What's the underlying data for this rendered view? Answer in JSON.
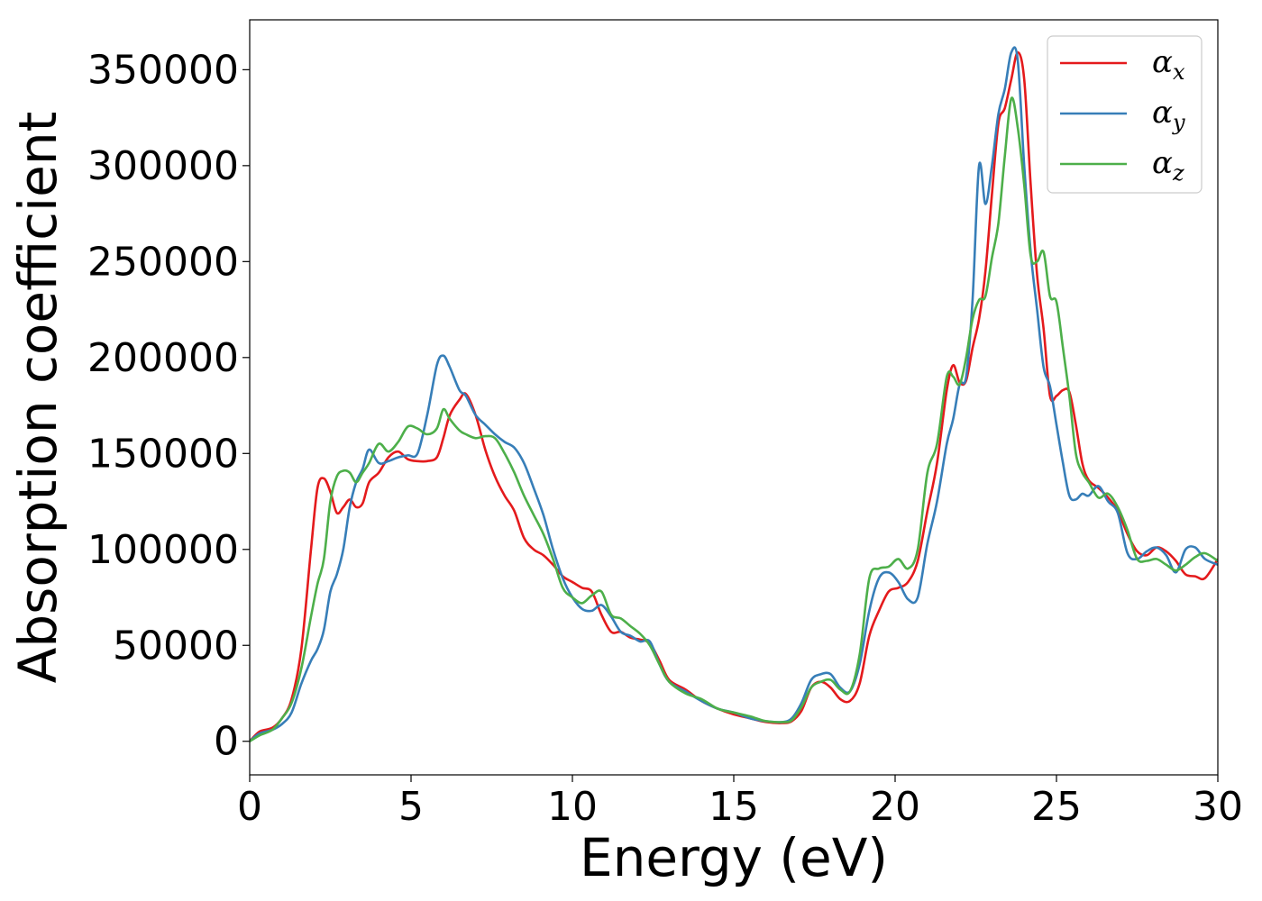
{
  "chart_data": {
    "type": "line",
    "title": "",
    "xlabel": "Energy (eV)",
    "ylabel": "Absorption coefficient",
    "xlim": [
      0,
      30
    ],
    "ylim": [
      -17500,
      376000
    ],
    "xticks": [
      0,
      5,
      10,
      15,
      20,
      25,
      30
    ],
    "yticks": [
      0,
      50000,
      100000,
      150000,
      200000,
      250000,
      300000,
      350000
    ],
    "grid": false,
    "legend_position": "top-right",
    "series": [
      {
        "name": "α",
        "subscript": "x",
        "color": "#e41a1c",
        "x": [
          0,
          0.3,
          0.7,
          1.0,
          1.3,
          1.6,
          1.9,
          2.1,
          2.3,
          2.5,
          2.7,
          2.9,
          3.1,
          3.3,
          3.5,
          3.7,
          4.0,
          4.3,
          4.6,
          4.9,
          5.2,
          5.5,
          5.8,
          6.0,
          6.2,
          6.5,
          6.7,
          7.0,
          7.3,
          7.6,
          7.9,
          8.2,
          8.5,
          8.8,
          9.1,
          9.4,
          9.7,
          10.0,
          10.3,
          10.6,
          10.9,
          11.2,
          11.5,
          11.8,
          12.1,
          12.4,
          12.7,
          13.0,
          13.5,
          14.0,
          14.5,
          15.0,
          15.5,
          16.0,
          16.5,
          16.8,
          17.1,
          17.4,
          17.7,
          18.0,
          18.3,
          18.6,
          18.9,
          19.2,
          19.5,
          19.8,
          20.1,
          20.4,
          20.7,
          21.0,
          21.3,
          21.6,
          21.8,
          22.0,
          22.2,
          22.4,
          22.6,
          22.8,
          23.0,
          23.2,
          23.4,
          23.6,
          23.8,
          24.0,
          24.2,
          24.4,
          24.6,
          24.8,
          25.0,
          25.2,
          25.4,
          25.6,
          25.8,
          26.0,
          26.3,
          26.6,
          26.9,
          27.2,
          27.5,
          27.8,
          28.1,
          28.4,
          28.7,
          29.0,
          29.3,
          29.6,
          30.0
        ],
        "y": [
          0,
          5000,
          7000,
          12000,
          22000,
          48000,
          100000,
          132000,
          137000,
          130000,
          119000,
          122000,
          126000,
          122000,
          124000,
          135000,
          140000,
          148000,
          151000,
          147000,
          146000,
          146000,
          148000,
          158000,
          170000,
          178000,
          181000,
          170000,
          152000,
          138000,
          128000,
          120000,
          106000,
          100000,
          97000,
          92000,
          86000,
          83000,
          80000,
          78000,
          66000,
          57000,
          57000,
          54000,
          53000,
          51000,
          42000,
          32000,
          27000,
          21000,
          17000,
          14000,
          12000,
          10000,
          9500,
          10500,
          16000,
          28000,
          31000,
          28000,
          22000,
          21000,
          30000,
          55000,
          68000,
          78000,
          80000,
          83000,
          94000,
          120000,
          145000,
          183000,
          196000,
          187000,
          188000,
          205000,
          220000,
          245000,
          285000,
          322000,
          330000,
          345000,
          359000,
          345000,
          290000,
          243000,
          215000,
          180000,
          180000,
          183000,
          182000,
          165000,
          145000,
          136000,
          132000,
          127000,
          120000,
          108000,
          99000,
          97000,
          101000,
          99000,
          94000,
          87000,
          86000,
          85000,
          95000
        ]
      },
      {
        "name": "α",
        "subscript": "y",
        "color": "#377eb8",
        "x": [
          0,
          0.3,
          0.7,
          1.0,
          1.3,
          1.6,
          1.9,
          2.1,
          2.3,
          2.5,
          2.7,
          2.9,
          3.1,
          3.3,
          3.5,
          3.7,
          4.0,
          4.3,
          4.6,
          4.9,
          5.2,
          5.5,
          5.8,
          6.0,
          6.2,
          6.5,
          6.7,
          7.0,
          7.3,
          7.6,
          7.9,
          8.2,
          8.5,
          8.8,
          9.1,
          9.4,
          9.7,
          10.0,
          10.3,
          10.6,
          10.9,
          11.2,
          11.5,
          11.8,
          12.1,
          12.4,
          12.7,
          13.0,
          13.5,
          14.0,
          14.5,
          15.0,
          15.5,
          16.0,
          16.5,
          16.8,
          17.1,
          17.4,
          17.7,
          18.0,
          18.3,
          18.6,
          18.9,
          19.2,
          19.5,
          19.8,
          20.1,
          20.4,
          20.7,
          21.0,
          21.3,
          21.6,
          21.8,
          22.0,
          22.2,
          22.4,
          22.6,
          22.8,
          23.0,
          23.2,
          23.4,
          23.6,
          23.8,
          24.0,
          24.2,
          24.4,
          24.6,
          24.8,
          25.0,
          25.2,
          25.4,
          25.6,
          25.8,
          26.0,
          26.3,
          26.6,
          26.9,
          27.2,
          27.5,
          27.8,
          28.1,
          28.4,
          28.7,
          29.0,
          29.3,
          29.6,
          30.0
        ],
        "y": [
          0,
          4000,
          6000,
          9000,
          15000,
          30000,
          42000,
          48000,
          58000,
          78000,
          87000,
          100000,
          122000,
          135000,
          142000,
          152000,
          145000,
          146000,
          148000,
          149000,
          150000,
          170000,
          196000,
          201000,
          195000,
          183000,
          180000,
          170000,
          165000,
          160000,
          156000,
          153000,
          145000,
          132000,
          118000,
          100000,
          85000,
          75000,
          69000,
          68000,
          71000,
          65000,
          57000,
          55000,
          52000,
          52000,
          40000,
          31000,
          26000,
          21000,
          17000,
          15000,
          12000,
          10500,
          10000,
          12000,
          20000,
          32000,
          35000,
          35000,
          28000,
          26000,
          40000,
          68000,
          85000,
          88000,
          83000,
          74000,
          75000,
          103000,
          125000,
          155000,
          168000,
          186000,
          190000,
          230000,
          300000,
          280000,
          300000,
          327000,
          340000,
          359000,
          355000,
          300000,
          255000,
          225000,
          195000,
          185000,
          165000,
          145000,
          128000,
          126000,
          129000,
          128000,
          133000,
          125000,
          119000,
          98000,
          95000,
          99000,
          101000,
          97000,
          88000,
          100000,
          101000,
          95000,
          92000
        ]
      },
      {
        "name": "α",
        "subscript": "z",
        "color": "#4daf4a",
        "x": [
          0,
          0.3,
          0.7,
          1.0,
          1.3,
          1.6,
          1.9,
          2.1,
          2.3,
          2.5,
          2.7,
          2.9,
          3.1,
          3.3,
          3.5,
          3.7,
          4.0,
          4.3,
          4.6,
          4.9,
          5.2,
          5.5,
          5.8,
          6.0,
          6.2,
          6.5,
          6.7,
          7.0,
          7.3,
          7.6,
          7.9,
          8.2,
          8.5,
          8.8,
          9.1,
          9.4,
          9.7,
          10.0,
          10.3,
          10.6,
          10.9,
          11.2,
          11.5,
          11.8,
          12.1,
          12.4,
          12.7,
          13.0,
          13.5,
          14.0,
          14.5,
          15.0,
          15.5,
          16.0,
          16.5,
          16.8,
          17.1,
          17.4,
          17.7,
          18.0,
          18.3,
          18.6,
          18.9,
          19.2,
          19.5,
          19.8,
          20.1,
          20.4,
          20.7,
          21.0,
          21.3,
          21.6,
          21.8,
          22.0,
          22.2,
          22.4,
          22.6,
          22.8,
          23.0,
          23.2,
          23.4,
          23.6,
          23.8,
          24.0,
          24.2,
          24.4,
          24.6,
          24.8,
          25.0,
          25.2,
          25.4,
          25.6,
          25.8,
          26.0,
          26.3,
          26.6,
          26.9,
          27.2,
          27.5,
          27.8,
          28.1,
          28.4,
          28.7,
          29.0,
          29.3,
          29.6,
          30.0
        ],
        "y": [
          0,
          3000,
          6000,
          12000,
          20000,
          38000,
          65000,
          82000,
          95000,
          125000,
          138000,
          141000,
          140000,
          135000,
          140000,
          145000,
          155000,
          151000,
          156000,
          164000,
          163000,
          160000,
          163000,
          173000,
          168000,
          162000,
          160000,
          158000,
          159000,
          158000,
          150000,
          140000,
          128000,
          118000,
          108000,
          95000,
          80000,
          75000,
          72000,
          76000,
          78000,
          66000,
          64000,
          60000,
          56000,
          50000,
          40000,
          31000,
          25000,
          22000,
          17000,
          15000,
          13000,
          10500,
          10000,
          11000,
          18000,
          28000,
          31000,
          32000,
          27000,
          26000,
          45000,
          85000,
          90000,
          91000,
          95000,
          90000,
          100000,
          140000,
          155000,
          190000,
          190000,
          186000,
          200000,
          220000,
          230000,
          232000,
          252000,
          270000,
          305000,
          335000,
          320000,
          290000,
          253000,
          250000,
          255000,
          232000,
          229000,
          205000,
          180000,
          150000,
          140000,
          135000,
          127000,
          129000,
          122000,
          110000,
          95000,
          94000,
          95000,
          92000,
          89000,
          92000,
          96000,
          98000,
          94000
        ]
      }
    ]
  }
}
